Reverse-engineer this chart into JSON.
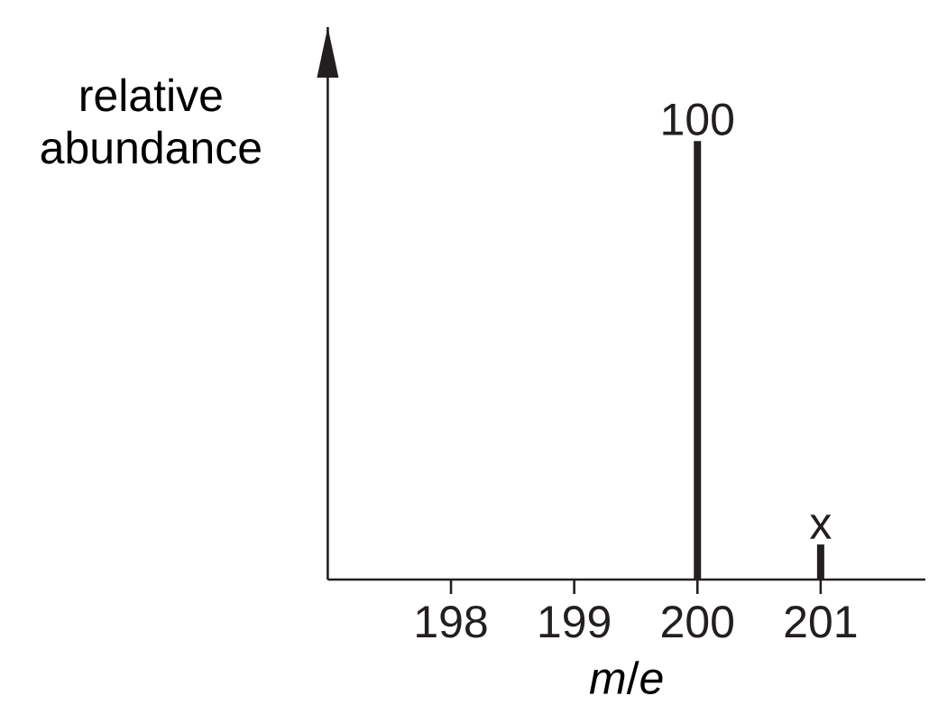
{
  "chart_data": {
    "type": "bar",
    "x": [
      200,
      201
    ],
    "values": [
      100,
      8
    ],
    "value_labels": [
      "100",
      "x"
    ],
    "color": "#231f20",
    "xlim": [
      197,
      201.85
    ],
    "xticks": [
      198,
      199,
      200,
      201
    ],
    "ylim": [
      0,
      126
    ],
    "tick_labels": "x",
    "xlabel": "*m*/*e*",
    "ylabel": "relative abundance"
  }
}
